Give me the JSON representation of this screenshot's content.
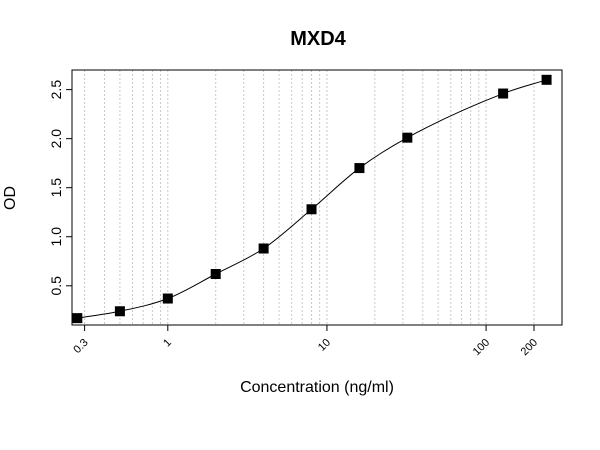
{
  "chart_data": {
    "type": "scatter",
    "title": "MXD4",
    "xlabel": "Concentration (ng/ml)",
    "ylabel": "OD",
    "x_scale": "log",
    "xlim": [
      0.25,
      300
    ],
    "ylim": [
      0.1,
      2.7
    ],
    "x_ticks": [
      0.3,
      1,
      10,
      100,
      200
    ],
    "x_tick_labels": [
      "0.3",
      "1",
      "10",
      "100",
      "200"
    ],
    "y_ticks": [
      0.5,
      1.0,
      1.5,
      2.0,
      2.5
    ],
    "y_tick_labels": [
      "0.5",
      "1.0",
      "1.5",
      "2.0",
      "2.5"
    ],
    "grid": "vertical dotted at each decade subdivision",
    "series": [
      {
        "marker": "filled-square",
        "color": "#000000",
        "x": [
          0.27,
          0.5,
          1,
          2,
          4,
          8,
          16,
          32,
          128,
          240
        ],
        "y": [
          0.17,
          0.24,
          0.37,
          0.62,
          0.88,
          1.28,
          1.7,
          2.01,
          2.46,
          2.6
        ]
      }
    ],
    "fit_curve": {
      "type": "4PL",
      "color": "#000000"
    }
  }
}
